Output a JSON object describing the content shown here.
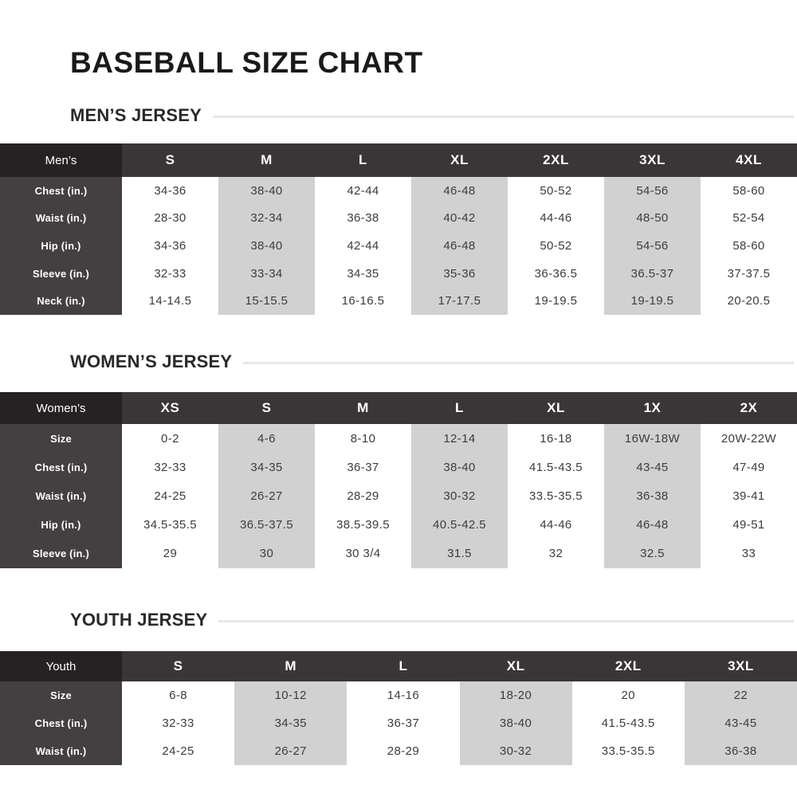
{
  "page": {
    "title": "BASEBALL SIZE CHART"
  },
  "colors": {
    "header_row_bg": "#3A3637",
    "corner_cell_bg": "#262223",
    "label_column_bg": "#443F40",
    "shaded_column_bg": "#D2D1D1",
    "heading_rule": "#E7E7E7",
    "data_text": "#3E3B3C"
  },
  "sections": [
    {
      "heading": "MEN’S JERSEY",
      "corner_label": "Men’s",
      "columns": [
        "S",
        "M",
        "L",
        "XL",
        "2XL",
        "3XL",
        "4XL"
      ],
      "shaded_columns": [
        1,
        3,
        5
      ],
      "rows": [
        {
          "label": "Chest (in.)",
          "values": [
            "34-36",
            "38-40",
            "42-44",
            "46-48",
            "50-52",
            "54-56",
            "58-60"
          ]
        },
        {
          "label": "Waist (in.)",
          "values": [
            "28-30",
            "32-34",
            "36-38",
            "40-42",
            "44-46",
            "48-50",
            "52-54"
          ]
        },
        {
          "label": "Hip (in.)",
          "values": [
            "34-36",
            "38-40",
            "42-44",
            "46-48",
            "50-52",
            "54-56",
            "58-60"
          ]
        },
        {
          "label": "Sleeve (in.)",
          "values": [
            "32-33",
            "33-34",
            "34-35",
            "35-36",
            "36-36.5",
            "36.5-37",
            "37-37.5"
          ]
        },
        {
          "label": "Neck (in.)",
          "values": [
            "14-14.5",
            "15-15.5",
            "16-16.5",
            "17-17.5",
            "19-19.5",
            "19-19.5",
            "20-20.5"
          ]
        }
      ]
    },
    {
      "heading": "WOMEN’S JERSEY",
      "corner_label": "Women’s",
      "columns": [
        "XS",
        "S",
        "M",
        "L",
        "XL",
        "1X",
        "2X"
      ],
      "shaded_columns": [
        1,
        3,
        5
      ],
      "rows": [
        {
          "label": "Size",
          "values": [
            "0-2",
            "4-6",
            "8-10",
            "12-14",
            "16-18",
            "16W-18W",
            "20W-22W"
          ]
        },
        {
          "label": "Chest (in.)",
          "values": [
            "32-33",
            "34-35",
            "36-37",
            "38-40",
            "41.5-43.5",
            "43-45",
            "47-49"
          ]
        },
        {
          "label": "Waist (in.)",
          "values": [
            "24-25",
            "26-27",
            "28-29",
            "30-32",
            "33.5-35.5",
            "36-38",
            "39-41"
          ]
        },
        {
          "label": "Hip (in.)",
          "values": [
            "34.5-35.5",
            "36.5-37.5",
            "38.5-39.5",
            "40.5-42.5",
            "44-46",
            "46-48",
            "49-51"
          ]
        },
        {
          "label": "Sleeve (in.)",
          "values": [
            "29",
            "30",
            "30 3/4",
            "31.5",
            "32",
            "32.5",
            "33"
          ]
        }
      ]
    },
    {
      "heading": "YOUTH JERSEY",
      "corner_label": "Youth",
      "columns": [
        "S",
        "M",
        "L",
        "XL",
        "2XL",
        "3XL"
      ],
      "shaded_columns": [
        1,
        3,
        5
      ],
      "rows": [
        {
          "label": "Size",
          "values": [
            "6-8",
            "10-12",
            "14-16",
            "18-20",
            "20",
            "22"
          ]
        },
        {
          "label": "Chest (in.)",
          "values": [
            "32-33",
            "34-35",
            "36-37",
            "38-40",
            "41.5-43.5",
            "43-45"
          ]
        },
        {
          "label": "Waist (in.)",
          "values": [
            "24-25",
            "26-27",
            "28-29",
            "30-32",
            "33.5-35.5",
            "36-38"
          ]
        }
      ]
    }
  ]
}
